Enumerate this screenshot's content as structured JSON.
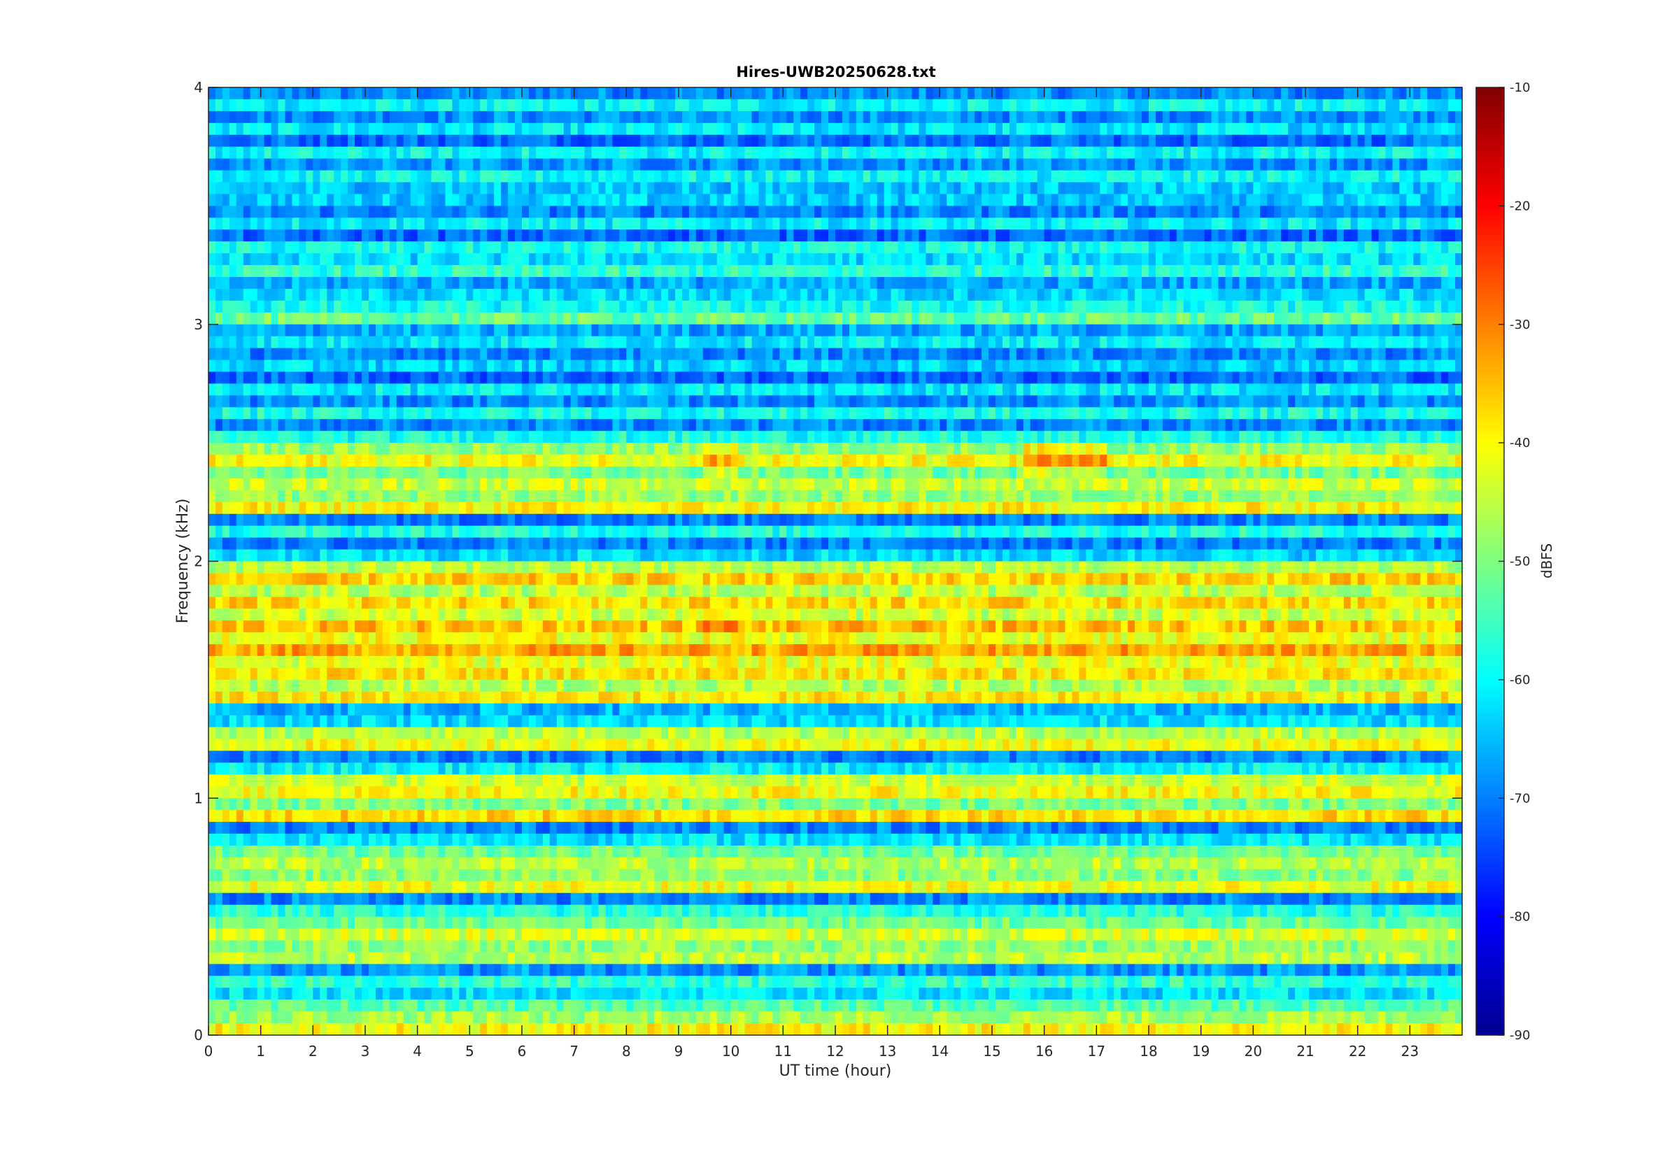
{
  "chart_data": {
    "type": "heatmap",
    "title": "Hires-UWB20250628.txt",
    "xlabel": "UT time (hour)",
    "ylabel": "Frequency (kHz)",
    "xlim": [
      0,
      24
    ],
    "ylim": [
      0,
      4
    ],
    "x_ticks": [
      "0",
      "1",
      "2",
      "3",
      "4",
      "5",
      "6",
      "7",
      "8",
      "9",
      "10",
      "11",
      "12",
      "13",
      "14",
      "15",
      "16",
      "17",
      "18",
      "19",
      "20",
      "21",
      "22",
      "23"
    ],
    "y_ticks": [
      "0",
      "1",
      "2",
      "3",
      "4"
    ],
    "colormap": "jet",
    "colorbar": {
      "label": "dBFS",
      "limits": [
        -90,
        -10
      ],
      "ticks": [
        "-10",
        "-20",
        "-30",
        "-40",
        "-50",
        "-60",
        "-70",
        "-80",
        "-90"
      ]
    },
    "bands_khz_dbfs": [
      {
        "freq_khz": 0.05,
        "level_dbfs": -40
      },
      {
        "freq_khz": 0.15,
        "level_dbfs": -55
      },
      {
        "freq_khz": 0.35,
        "level_dbfs": -45
      },
      {
        "freq_khz": 0.45,
        "level_dbfs": -47
      },
      {
        "freq_khz": 0.65,
        "level_dbfs": -44
      },
      {
        "freq_khz": 0.75,
        "level_dbfs": -48
      },
      {
        "freq_khz": 0.95,
        "level_dbfs": -42
      },
      {
        "freq_khz": 1.05,
        "level_dbfs": -40
      },
      {
        "freq_khz": 1.25,
        "level_dbfs": -43
      },
      {
        "freq_khz": 1.45,
        "level_dbfs": -40
      },
      {
        "freq_khz": 1.55,
        "level_dbfs": -38
      },
      {
        "freq_khz": 1.65,
        "level_dbfs": -37
      },
      {
        "freq_khz": 1.75,
        "level_dbfs": -38
      },
      {
        "freq_khz": 1.85,
        "level_dbfs": -40
      },
      {
        "freq_khz": 1.95,
        "level_dbfs": -42
      },
      {
        "freq_khz": 2.25,
        "level_dbfs": -45
      },
      {
        "freq_khz": 2.35,
        "level_dbfs": -44
      },
      {
        "freq_khz": 2.45,
        "level_dbfs": -42
      },
      {
        "freq_khz": 3.05,
        "level_dbfs": -53
      },
      {
        "freq_khz": 3.25,
        "level_dbfs": -58
      },
      {
        "freq_khz": 3.6,
        "level_dbfs": -62
      },
      {
        "freq_khz": 3.85,
        "level_dbfs": -64
      }
    ],
    "grid": false
  },
  "colors": {
    "axis": "#262626",
    "background": "#ffffff"
  }
}
